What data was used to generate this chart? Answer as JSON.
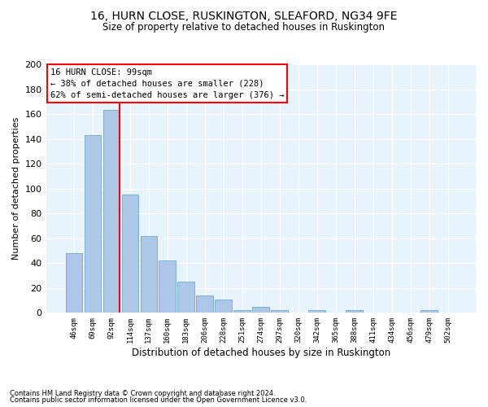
{
  "title": "16, HURN CLOSE, RUSKINGTON, SLEAFORD, NG34 9FE",
  "subtitle": "Size of property relative to detached houses in Ruskington",
  "xlabel": "Distribution of detached houses by size in Ruskington",
  "ylabel": "Number of detached properties",
  "bar_color": "#aec6e8",
  "bar_edge_color": "#7aafd4",
  "categories": [
    "46sqm",
    "69sqm",
    "92sqm",
    "114sqm",
    "137sqm",
    "160sqm",
    "183sqm",
    "206sqm",
    "228sqm",
    "251sqm",
    "274sqm",
    "297sqm",
    "320sqm",
    "342sqm",
    "365sqm",
    "388sqm",
    "411sqm",
    "434sqm",
    "456sqm",
    "479sqm",
    "502sqm"
  ],
  "values": [
    48,
    143,
    163,
    95,
    62,
    42,
    25,
    14,
    11,
    2,
    5,
    2,
    0,
    2,
    0,
    2,
    0,
    0,
    0,
    2,
    0
  ],
  "annotation_text_line1": "16 HURN CLOSE: 99sqm",
  "annotation_text_line2": "← 38% of detached houses are smaller (228)",
  "annotation_text_line3": "62% of semi-detached houses are larger (376) →",
  "annotation_box_color": "white",
  "annotation_box_edge_color": "red",
  "vline_color": "red",
  "ylim": [
    0,
    200
  ],
  "yticks": [
    0,
    20,
    40,
    60,
    80,
    100,
    120,
    140,
    160,
    180,
    200
  ],
  "background_color": "#e8f4fc",
  "grid_color": "white",
  "footnote1": "Contains HM Land Registry data © Crown copyright and database right 2024.",
  "footnote2": "Contains public sector information licensed under the Open Government Licence v3.0."
}
